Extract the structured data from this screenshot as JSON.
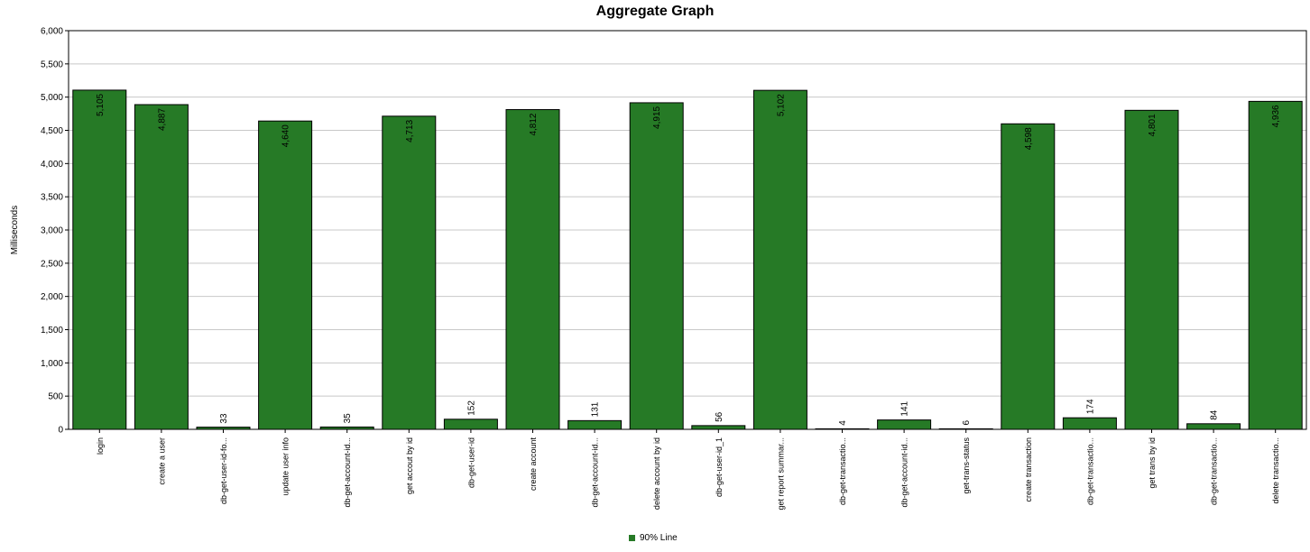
{
  "chart_data": {
    "type": "bar",
    "title": "Aggregate Graph",
    "ylabel": "Milliseconds",
    "xlabel": "",
    "ylim": [
      0,
      6000
    ],
    "yticks": [
      "0",
      "500",
      "1,000",
      "1,500",
      "2,000",
      "2,500",
      "3,000",
      "3,500",
      "4,000",
      "4,500",
      "5,000",
      "5,500",
      "6,000"
    ],
    "ytick_values": [
      0,
      500,
      1000,
      1500,
      2000,
      2500,
      3000,
      3500,
      4000,
      4500,
      5000,
      5500,
      6000
    ],
    "grid": true,
    "legend_position": "bottom-center",
    "categories": [
      "login",
      "create a user",
      "db-get-user-id-fo...",
      "update user info",
      "db-get-account-id...",
      "get accout by id",
      "db-get-user-id",
      "create account",
      "db-get-account-id...",
      "delete account by id",
      "db-get-user-id_1",
      "get report summar...",
      "db-get-transactio...",
      "db-get-account-id...",
      "get-trans-status",
      "create transaction",
      "db-get-transactio...",
      "get trans by id",
      "db-get-transactio...",
      "delete transactio..."
    ],
    "series": [
      {
        "name": "90% Line",
        "color": "#267a26",
        "values": [
          5105,
          4887,
          33,
          4640,
          35,
          4713,
          152,
          4812,
          131,
          4915,
          56,
          5102,
          4,
          141,
          6,
          4598,
          174,
          4801,
          84,
          4936
        ],
        "labels": [
          "5,105",
          "4,887",
          "33",
          "4,640",
          "35",
          "4,713",
          "152",
          "4,812",
          "131",
          "4,915",
          "56",
          "5,102",
          "4",
          "141",
          "6",
          "4,598",
          "174",
          "4,801",
          "84",
          "4,936"
        ]
      }
    ]
  },
  "legend": {
    "label": "90% Line",
    "color": "#267a26"
  }
}
